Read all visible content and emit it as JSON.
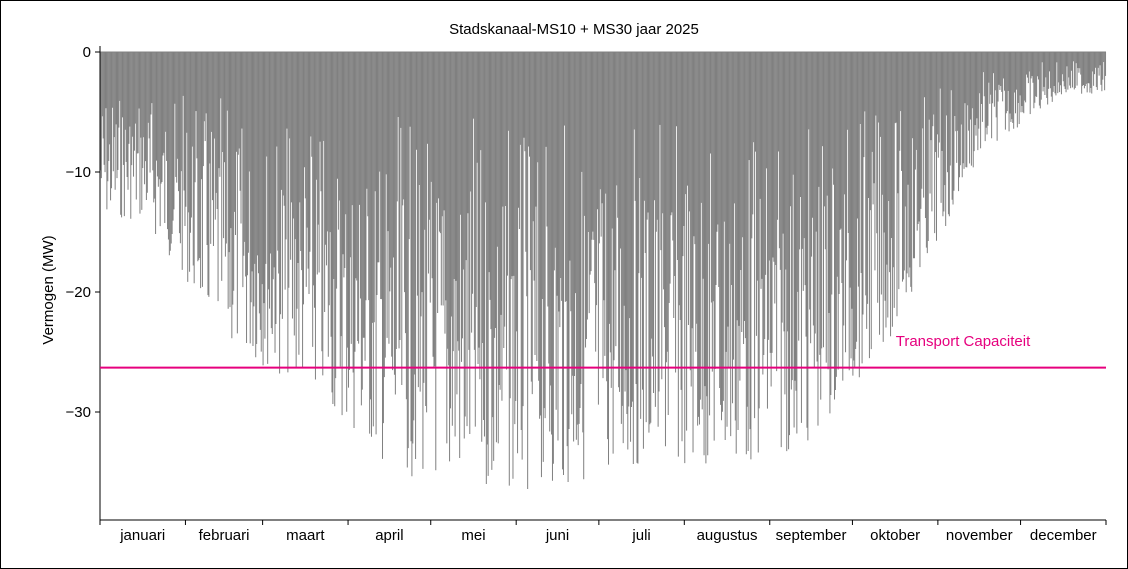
{
  "chart_data": {
    "type": "bar",
    "title": "Stadskanaal-MS10 + MS30 jaar 2025",
    "ylabel": "Vermogen (MW)",
    "xlabel": "",
    "ylim": [
      -39,
      0
    ],
    "yticks": [
      0,
      -10,
      -20,
      -30
    ],
    "months": [
      "januari",
      "februari",
      "maart",
      "april",
      "mei",
      "juni",
      "juli",
      "augustus",
      "september",
      "oktober",
      "november",
      "december"
    ],
    "days_per_month": [
      31,
      28,
      31,
      30,
      31,
      30,
      31,
      31,
      30,
      31,
      30,
      31
    ],
    "series": [
      {
        "name": "Vermogen (MW)",
        "color": "#808080",
        "monthly_min_envelope": [
          -14,
          -24.5,
          -28,
          -35,
          -36.7,
          -36.3,
          -34.5,
          -35,
          -32.8,
          -23,
          -8.5,
          -3.5
        ]
      }
    ],
    "annotation": {
      "label": "Transport Capaciteit",
      "value": -26.3,
      "color": "#e6007e"
    },
    "grid": false,
    "frame": {
      "color": "#000000"
    }
  }
}
